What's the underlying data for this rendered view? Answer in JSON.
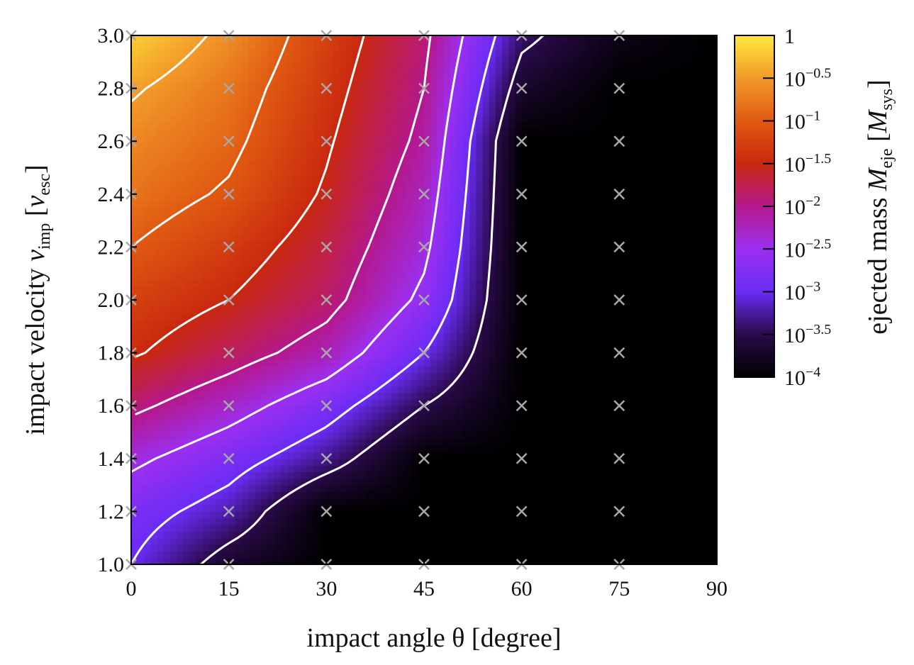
{
  "chart_data": {
    "type": "heatmap",
    "xlabel": "impact angle θ [degree]",
    "ylabel_parts": {
      "pre": "impact velocity ",
      "var": "v",
      "sub": "imp",
      "post_open": " [",
      "unit": "v",
      "unit_sub": "esc",
      "post_close": "]"
    },
    "colorbar_label_parts": {
      "pre": "ejected mass ",
      "var": "M",
      "sub": "eje",
      "post_open": " [",
      "unit": "M",
      "unit_sub": "sys",
      "post_close": "]"
    },
    "x_ticks": [
      0,
      15,
      30,
      45,
      60,
      75,
      90
    ],
    "y_ticks": [
      "1.0",
      "1.2",
      "1.4",
      "1.6",
      "1.8",
      "2.0",
      "2.2",
      "2.4",
      "2.6",
      "2.8",
      "3.0"
    ],
    "xlim": [
      0,
      90
    ],
    "ylim": [
      1.0,
      3.0
    ],
    "colorbar": {
      "scale": "log10",
      "range": [
        -4,
        0
      ],
      "ticks": [
        {
          "value": 0,
          "base": "1",
          "exp": ""
        },
        {
          "value": -0.5,
          "base": "10",
          "exp": "−0.5"
        },
        {
          "value": -1,
          "base": "10",
          "exp": "−1"
        },
        {
          "value": -1.5,
          "base": "10",
          "exp": "−1.5"
        },
        {
          "value": -2,
          "base": "10",
          "exp": "−2"
        },
        {
          "value": -2.5,
          "base": "10",
          "exp": "−2.5"
        },
        {
          "value": -3,
          "base": "10",
          "exp": "−3"
        },
        {
          "value": -3.5,
          "base": "10",
          "exp": "−3.5"
        },
        {
          "value": -4,
          "base": "10",
          "exp": "−4"
        }
      ],
      "colormap": [
        "#000000",
        "#2a0a4a",
        "#6a2cf5",
        "#9b2ff0",
        "#b5188c",
        "#c9280f",
        "#e05a12",
        "#f29a2a",
        "#ffe83a"
      ]
    },
    "sample_points": {
      "angles": [
        0,
        15,
        30,
        45,
        60,
        75
      ],
      "velocities": [
        1.0,
        1.2,
        1.4,
        1.6,
        1.8,
        2.0,
        2.2,
        2.4,
        2.6,
        2.8,
        3.0
      ],
      "marker": "cross",
      "marker_color": "#a8a8a8"
    },
    "log10_ejected_mass_estimate": {
      "note_rows_by_velocity": [
        1.0,
        1.2,
        1.4,
        1.6,
        1.8,
        2.0,
        2.2,
        2.4,
        2.6,
        2.8,
        3.0
      ],
      "cols_by_angle": [
        0,
        15,
        30,
        45,
        60,
        75,
        90
      ],
      "values": [
        [
          -3.0,
          -3.7,
          -4.0,
          -4.0,
          -4.0,
          -4.0,
          -4.0
        ],
        [
          -2.8,
          -3.2,
          -4.0,
          -4.0,
          -4.0,
          -4.0,
          -4.0
        ],
        [
          -2.4,
          -2.8,
          -3.3,
          -4.0,
          -4.0,
          -4.0,
          -4.0
        ],
        [
          -1.9,
          -2.3,
          -2.8,
          -3.5,
          -4.0,
          -4.0,
          -4.0
        ],
        [
          -1.45,
          -1.8,
          -2.2,
          -3.0,
          -4.0,
          -4.0,
          -4.0
        ],
        [
          -1.25,
          -1.5,
          -1.85,
          -2.6,
          -4.0,
          -4.0,
          -4.0
        ],
        [
          -1.0,
          -1.3,
          -1.7,
          -2.4,
          -4.0,
          -4.0,
          -4.0
        ],
        [
          -0.8,
          -1.05,
          -1.55,
          -2.25,
          -4.0,
          -4.0,
          -4.0
        ],
        [
          -0.65,
          -0.9,
          -1.45,
          -2.1,
          -4.0,
          -4.0,
          -4.0
        ],
        [
          -0.45,
          -0.78,
          -1.35,
          -2.0,
          -3.7,
          -4.0,
          -4.0
        ],
        [
          -0.15,
          -0.6,
          -1.25,
          -1.9,
          -3.4,
          -3.85,
          -4.0
        ]
      ]
    },
    "contour_levels": [
      -0.5,
      -1,
      -1.5,
      -2,
      -2.5,
      -3,
      -3.5
    ],
    "contour_color": "#ffffff"
  }
}
